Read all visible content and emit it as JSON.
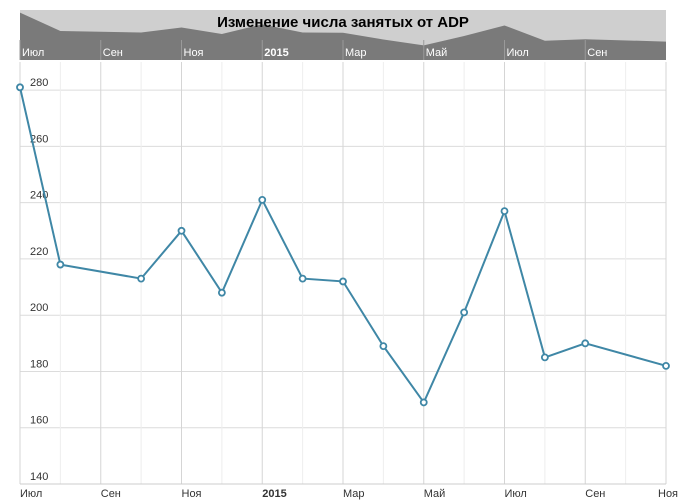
{
  "chart_data": {
    "type": "line",
    "title": "Изменение числа занятых от ADP",
    "xlabel": "",
    "ylabel": "",
    "x": [
      "2014-07",
      "2014-08",
      "2014-10",
      "2014-11",
      "2014-12",
      "2015-01",
      "2015-02",
      "2015-03",
      "2015-04",
      "2015-05",
      "2015-06",
      "2015-07",
      "2015-08",
      "2015-09",
      "2015-11"
    ],
    "series": [
      {
        "values": [
          281,
          218,
          213,
          230,
          208,
          241,
          213,
          212,
          189,
          169,
          201,
          237,
          185,
          190,
          182
        ]
      }
    ],
    "ylim": [
      140,
      290
    ],
    "yticks": [
      "140",
      "160",
      "180",
      "200",
      "220",
      "240",
      "260",
      "280"
    ],
    "xticks": [
      "Июл",
      "Сен",
      "Ноя",
      "2015",
      "Мар",
      "Май",
      "Июл",
      "Сен",
      "Ноя"
    ],
    "navigator_xticks": [
      "Июл",
      "Сен",
      "Ноя",
      "2015",
      "Мар",
      "Май",
      "Июл",
      "Сен"
    ],
    "grid": true,
    "legend": "none",
    "colors": {
      "line": "#3f87a6",
      "marker_fill": "#ffffff",
      "grid": "#dcdcdc",
      "navigator_bg": "#7a7a7a",
      "navigator_area": "#cfcfcf"
    }
  }
}
